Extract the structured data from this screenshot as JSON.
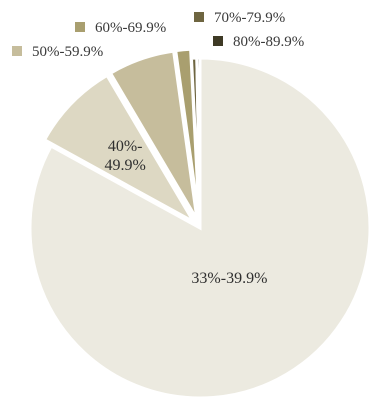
{
  "chart_data": {
    "type": "pie",
    "categories": [
      "33%-39.9%",
      "40%-49.9%",
      "50%-59.9%",
      "60%-69.9%",
      "70%-79.9%",
      "80%-89.9%"
    ],
    "values": [
      83.0,
      8.5,
      6.3,
      1.4,
      0.5,
      0.3
    ],
    "colors": [
      "#eceae0",
      "#ddd8c3",
      "#c6bd9c",
      "#a99f6f",
      "#6e6540",
      "#3e3a25"
    ],
    "slice_labels": {
      "0": [
        "33%-39.9%"
      ],
      "1": [
        "40%-",
        "49.9%"
      ]
    },
    "legend": [
      {
        "label": "60%-69.9%",
        "color": "#a99f6f"
      },
      {
        "label": "70%-79.9%",
        "color": "#6e6540"
      },
      {
        "label": "50%-59.9%",
        "color": "#c6bd9c"
      },
      {
        "label": "80%-89.9%",
        "color": "#3e3a25"
      }
    ],
    "start_angle_deg": 0,
    "direction": "clockwise",
    "exploded": [
      "40%-49.9%",
      "50%-59.9%",
      "60%-69.9%"
    ]
  }
}
